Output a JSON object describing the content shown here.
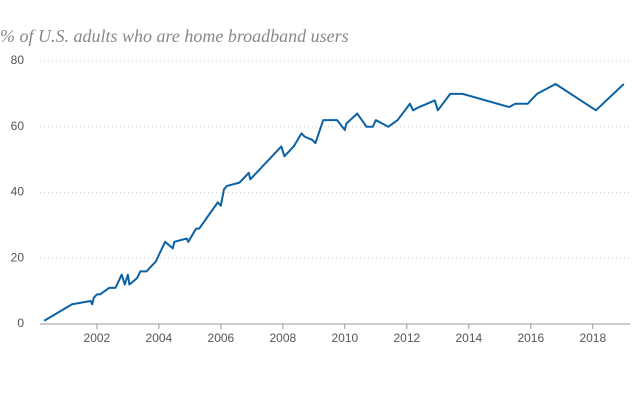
{
  "chart_data": {
    "type": "line",
    "title": "% of U.S. adults who are home broadband users",
    "x": [
      2000.3,
      2001.2,
      2001.8,
      2001.85,
      2001.9,
      2002.0,
      2002.1,
      2002.4,
      2002.6,
      2002.8,
      2002.9,
      2003.0,
      2003.05,
      2003.3,
      2003.4,
      2003.6,
      2003.7,
      2003.9,
      2004.2,
      2004.45,
      2004.5,
      2004.9,
      2004.95,
      2005.2,
      2005.3,
      2005.6,
      2005.9,
      2006.0,
      2006.1,
      2006.2,
      2006.6,
      2006.9,
      2006.95,
      2007.95,
      2008.05,
      2008.35,
      2008.6,
      2008.7,
      2008.95,
      2009.05,
      2009.3,
      2009.75,
      2010.0,
      2010.05,
      2010.4,
      2010.7,
      2010.9,
      2011.0,
      2011.4,
      2011.7,
      2012.1,
      2012.2,
      2012.4,
      2012.9,
      2013.0,
      2013.4,
      2013.8,
      2015.3,
      2015.5,
      2015.9,
      2016.2,
      2016.8,
      2018.1,
      2019.0
    ],
    "series": [
      {
        "name": "Home broadband users",
        "color": "#0b62a4",
        "values": [
          1,
          6,
          7,
          6,
          8,
          9,
          9,
          11,
          11,
          15,
          12,
          15,
          12,
          14,
          16,
          16,
          17,
          19,
          25,
          23,
          25,
          26,
          25,
          29,
          29,
          33,
          37,
          36,
          41,
          42,
          43,
          46,
          44,
          54,
          51,
          54,
          58,
          57,
          56,
          55,
          62,
          62,
          59,
          61,
          64,
          60,
          60,
          62,
          60,
          62,
          67,
          65,
          66,
          68,
          65,
          70,
          70,
          66,
          67,
          67,
          70,
          73,
          65,
          73
        ]
      }
    ],
    "xlim": [
      2000.1,
      2019.2
    ],
    "xticks": [
      2002,
      2004,
      2006,
      2008,
      2010,
      2012,
      2014,
      2016,
      2018
    ],
    "ylim": [
      0,
      80
    ],
    "yticks": [
      0,
      20,
      40,
      60,
      80
    ],
    "grid": true
  }
}
